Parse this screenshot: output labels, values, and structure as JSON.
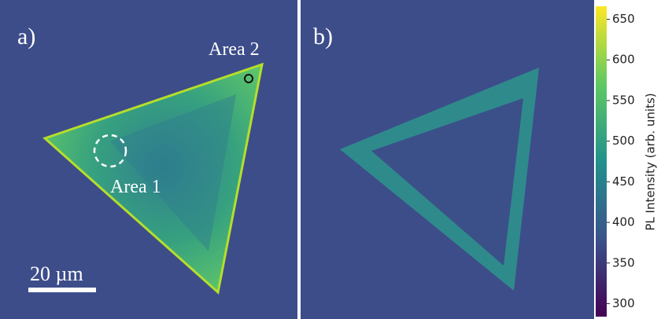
{
  "panels": [
    {
      "label": "a)",
      "annotations": [
        "Area 2",
        "Area 1"
      ],
      "scale_bar": "20 µm"
    },
    {
      "label": "b)"
    }
  ],
  "colorbar": {
    "label": "PL Intensity (arb. units)",
    "lim": [
      284,
      666
    ],
    "ticks": [
      300,
      350,
      400,
      450,
      500,
      550,
      600,
      650
    ]
  }
}
